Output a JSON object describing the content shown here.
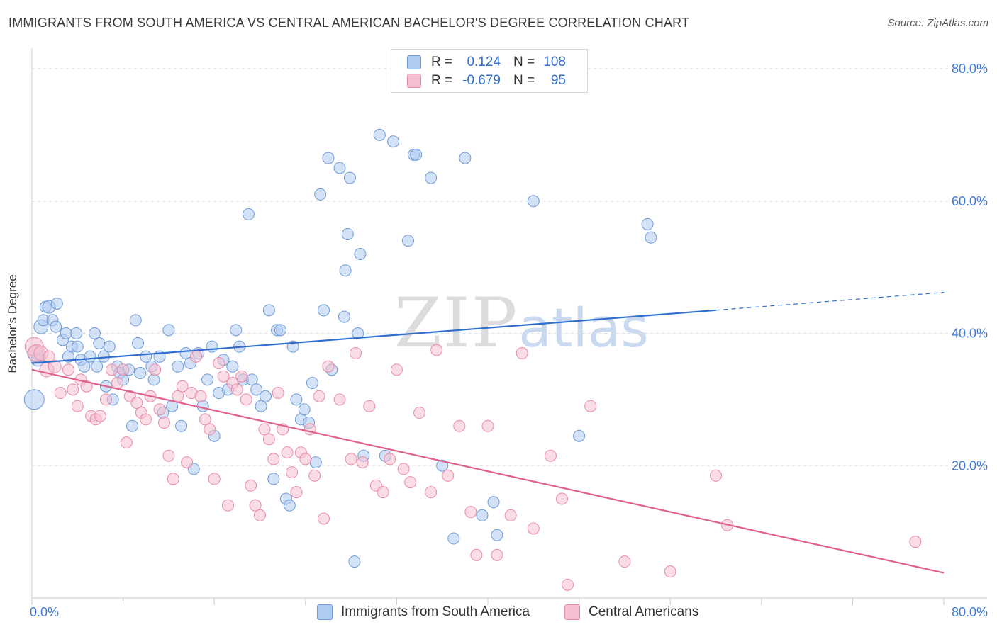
{
  "title": "IMMIGRANTS FROM SOUTH AMERICA VS CENTRAL AMERICAN BACHELOR'S DEGREE CORRELATION CHART",
  "source": "Source: ZipAtlas.com",
  "watermark": {
    "zip": "ZIP",
    "atlas": "atlas"
  },
  "legend": {
    "r_label": "R =",
    "n_label": "N =",
    "rows": [
      {
        "r": "0.124",
        "n": "108"
      },
      {
        "r": "-0.679",
        "n": "95"
      }
    ]
  },
  "colors": {
    "blue_fill": "#aecbf0",
    "blue_stroke": "#6e9ad6",
    "blue_line": "#2e6fd0",
    "pink_fill": "#f6bfd0",
    "pink_stroke": "#e88aa8",
    "pink_line": "#e0608e",
    "tick_label": "#3f7ad3",
    "grid": "#dddddd"
  },
  "chart_data": {
    "type": "scatter",
    "xlabel": "",
    "ylabel": "Bachelor's Degree",
    "xlim": [
      0,
      80
    ],
    "ylim": [
      0,
      80
    ],
    "x_tick_labels": [
      "0.0%",
      "80.0%"
    ],
    "y_ticks": [
      20,
      40,
      60,
      80
    ],
    "y_tick_labels": [
      "20.0%",
      "40.0%",
      "60.0%",
      "80.0%"
    ],
    "grid": true,
    "series": [
      {
        "name": "Immigrants from South America",
        "color": "blue",
        "trend": {
          "x0": 0,
          "y0": 35.5,
          "x1": 60,
          "y1": 43.5,
          "dashed_to_x": 80,
          "dashed_to_y": 46.2
        },
        "points": [
          [
            0.2,
            30,
            14
          ],
          [
            0.3,
            37,
            11
          ],
          [
            0.5,
            36,
            9
          ],
          [
            0.8,
            41,
            10
          ],
          [
            1.0,
            42,
            8
          ],
          [
            1.2,
            44,
            8
          ],
          [
            1.5,
            44,
            9
          ],
          [
            1.8,
            42,
            8
          ],
          [
            2.1,
            41,
            8
          ],
          [
            2.2,
            44.5,
            8
          ],
          [
            2.7,
            39,
            8
          ],
          [
            3.0,
            40,
            8
          ],
          [
            3.2,
            36.5,
            8
          ],
          [
            3.5,
            38,
            8
          ],
          [
            3.9,
            40,
            8
          ],
          [
            4.0,
            38,
            8
          ],
          [
            4.3,
            36,
            8
          ],
          [
            4.6,
            35,
            8
          ],
          [
            5.1,
            36.5,
            8
          ],
          [
            5.5,
            40,
            8
          ],
          [
            5.7,
            35,
            8
          ],
          [
            5.9,
            38.5,
            8
          ],
          [
            6.3,
            36.5,
            8
          ],
          [
            6.5,
            32,
            8
          ],
          [
            6.8,
            38,
            8
          ],
          [
            7.1,
            30,
            8
          ],
          [
            7.5,
            35,
            8
          ],
          [
            7.7,
            34,
            8
          ],
          [
            8.0,
            33,
            8
          ],
          [
            8.5,
            34.5,
            8
          ],
          [
            8.8,
            26,
            8
          ],
          [
            9.1,
            42,
            8
          ],
          [
            9.3,
            38.5,
            8
          ],
          [
            9.5,
            34,
            8
          ],
          [
            10.0,
            36.5,
            8
          ],
          [
            10.5,
            35,
            8
          ],
          [
            10.7,
            33,
            8
          ],
          [
            11.2,
            36.5,
            8
          ],
          [
            11.5,
            28,
            8
          ],
          [
            12.0,
            40.5,
            8
          ],
          [
            12.3,
            29,
            8
          ],
          [
            12.8,
            35,
            8
          ],
          [
            13.1,
            26,
            8
          ],
          [
            13.5,
            37,
            8
          ],
          [
            13.9,
            35.5,
            8
          ],
          [
            14.2,
            19.5,
            8
          ],
          [
            14.6,
            37,
            8
          ],
          [
            15.0,
            29,
            8
          ],
          [
            15.4,
            33,
            8
          ],
          [
            15.8,
            38,
            8
          ],
          [
            16.0,
            24.5,
            8
          ],
          [
            16.4,
            31,
            8
          ],
          [
            16.8,
            36,
            8
          ],
          [
            17.2,
            31.5,
            8
          ],
          [
            17.6,
            35,
            8
          ],
          [
            17.9,
            40.5,
            8
          ],
          [
            18.2,
            38,
            8
          ],
          [
            18.5,
            33,
            8
          ],
          [
            19.0,
            58,
            8
          ],
          [
            19.3,
            33,
            8
          ],
          [
            19.7,
            31.5,
            8
          ],
          [
            20.1,
            29,
            8
          ],
          [
            20.5,
            30.5,
            8
          ],
          [
            20.8,
            43.5,
            8
          ],
          [
            21.2,
            18,
            8
          ],
          [
            21.5,
            40.5,
            8
          ],
          [
            21.8,
            40.5,
            8
          ],
          [
            22.3,
            15,
            8
          ],
          [
            22.6,
            14,
            8
          ],
          [
            22.9,
            38,
            8
          ],
          [
            23.2,
            30,
            8
          ],
          [
            23.6,
            27,
            8
          ],
          [
            23.9,
            28.5,
            8
          ],
          [
            24.3,
            26.5,
            8
          ],
          [
            24.6,
            32.5,
            8
          ],
          [
            24.9,
            20.5,
            8
          ],
          [
            25.3,
            61,
            8
          ],
          [
            25.6,
            43.5,
            8
          ],
          [
            26.0,
            66.5,
            8
          ],
          [
            26.3,
            34.5,
            8
          ],
          [
            27.0,
            65,
            8
          ],
          [
            27.5,
            49.5,
            8
          ],
          [
            27.7,
            55,
            8
          ],
          [
            27.9,
            63.5,
            8
          ],
          [
            28.3,
            5.5,
            8
          ],
          [
            28.6,
            40,
            8
          ],
          [
            28.8,
            52,
            8
          ],
          [
            29.1,
            21.5,
            8
          ],
          [
            30.5,
            70,
            8
          ],
          [
            31.0,
            21.5,
            8
          ],
          [
            31.7,
            69,
            8
          ],
          [
            33.0,
            54,
            8
          ],
          [
            33.5,
            67,
            8
          ],
          [
            33.7,
            67,
            8
          ],
          [
            35.0,
            63.5,
            8
          ],
          [
            36.0,
            20,
            8
          ],
          [
            37.0,
            9,
            8
          ],
          [
            38.0,
            66.5,
            8
          ],
          [
            39.5,
            12.5,
            8
          ],
          [
            40.5,
            14.5,
            8
          ],
          [
            40.8,
            9.5,
            8
          ],
          [
            44.0,
            60,
            8
          ],
          [
            48.0,
            24.5,
            8
          ],
          [
            54.0,
            56.5,
            8
          ],
          [
            54.3,
            54.5,
            8
          ],
          [
            27.4,
            42.5,
            8
          ]
        ]
      },
      {
        "name": "Central Americans",
        "color": "pink",
        "trend": {
          "x0": 0,
          "y0": 34.5,
          "x1": 80,
          "y1": 3.8
        },
        "points": [
          [
            0.2,
            38,
            13
          ],
          [
            0.4,
            37,
            12
          ],
          [
            0.8,
            37,
            10
          ],
          [
            1.3,
            34.5,
            10
          ],
          [
            1.5,
            36.5,
            8
          ],
          [
            2.0,
            35,
            9
          ],
          [
            2.5,
            31,
            8
          ],
          [
            3.2,
            34.5,
            8
          ],
          [
            3.6,
            31.5,
            8
          ],
          [
            4.0,
            29,
            8
          ],
          [
            4.3,
            33,
            8
          ],
          [
            4.8,
            32,
            8
          ],
          [
            5.2,
            27.5,
            8
          ],
          [
            5.6,
            27,
            8
          ],
          [
            6.0,
            27.5,
            8
          ],
          [
            6.5,
            30,
            8
          ],
          [
            7.0,
            34.5,
            8
          ],
          [
            7.5,
            32.5,
            8
          ],
          [
            8.0,
            34.5,
            8
          ],
          [
            8.3,
            23.5,
            8
          ],
          [
            8.6,
            30.5,
            8
          ],
          [
            9.2,
            29.5,
            8
          ],
          [
            9.6,
            28,
            8
          ],
          [
            10.0,
            27,
            8
          ],
          [
            10.4,
            30.5,
            8
          ],
          [
            10.8,
            34.5,
            8
          ],
          [
            11.2,
            28.5,
            8
          ],
          [
            11.6,
            26.5,
            8
          ],
          [
            12.0,
            21.5,
            8
          ],
          [
            12.4,
            18,
            8
          ],
          [
            12.8,
            30.5,
            8
          ],
          [
            13.2,
            32,
            8
          ],
          [
            13.6,
            20.5,
            8
          ],
          [
            14.0,
            31,
            8
          ],
          [
            14.4,
            36.5,
            8
          ],
          [
            14.8,
            30.5,
            8
          ],
          [
            15.2,
            27,
            8
          ],
          [
            15.6,
            25.5,
            8
          ],
          [
            16.0,
            18,
            8
          ],
          [
            16.4,
            35.5,
            8
          ],
          [
            16.8,
            33.5,
            8
          ],
          [
            17.2,
            14,
            8
          ],
          [
            17.6,
            32.5,
            8
          ],
          [
            18.0,
            31.5,
            8
          ],
          [
            18.4,
            33.5,
            8
          ],
          [
            18.8,
            30,
            8
          ],
          [
            19.2,
            17,
            8
          ],
          [
            19.6,
            14,
            8
          ],
          [
            20.0,
            12.5,
            8
          ],
          [
            20.4,
            25.5,
            8
          ],
          [
            20.8,
            24,
            8
          ],
          [
            21.2,
            21,
            8
          ],
          [
            21.6,
            31,
            8
          ],
          [
            22.0,
            25.5,
            8
          ],
          [
            22.4,
            22,
            8
          ],
          [
            22.8,
            19,
            8
          ],
          [
            23.2,
            16,
            8
          ],
          [
            23.6,
            22,
            8
          ],
          [
            24.0,
            21,
            8
          ],
          [
            24.4,
            25.5,
            8
          ],
          [
            24.8,
            18.5,
            8
          ],
          [
            25.2,
            30.5,
            8
          ],
          [
            25.6,
            12,
            8
          ],
          [
            26.0,
            35,
            8
          ],
          [
            27.0,
            30,
            8
          ],
          [
            28.0,
            21,
            8
          ],
          [
            28.4,
            37,
            8
          ],
          [
            29.0,
            20.5,
            8
          ],
          [
            29.6,
            29,
            8
          ],
          [
            30.2,
            17,
            8
          ],
          [
            30.8,
            16,
            8
          ],
          [
            31.4,
            21,
            8
          ],
          [
            32.0,
            34.5,
            8
          ],
          [
            32.6,
            19.5,
            8
          ],
          [
            33.2,
            17.5,
            8
          ],
          [
            34.0,
            28,
            8
          ],
          [
            35.0,
            16,
            8
          ],
          [
            35.5,
            37.5,
            8
          ],
          [
            36.5,
            18.5,
            8
          ],
          [
            37.5,
            26,
            8
          ],
          [
            38.5,
            13,
            8
          ],
          [
            39.0,
            6.5,
            8
          ],
          [
            40.0,
            26,
            8
          ],
          [
            40.8,
            6.5,
            8
          ],
          [
            42.0,
            12.5,
            8
          ],
          [
            43.0,
            37,
            8
          ],
          [
            44.0,
            10.5,
            8
          ],
          [
            45.5,
            21.5,
            8
          ],
          [
            46.5,
            15,
            8
          ],
          [
            47.0,
            2,
            8
          ],
          [
            49.0,
            29,
            8
          ],
          [
            52.0,
            5.5,
            8
          ],
          [
            56.0,
            4,
            8
          ],
          [
            60.0,
            18.5,
            8
          ],
          [
            61.0,
            11,
            8
          ],
          [
            77.5,
            8.5,
            8
          ]
        ]
      }
    ]
  }
}
